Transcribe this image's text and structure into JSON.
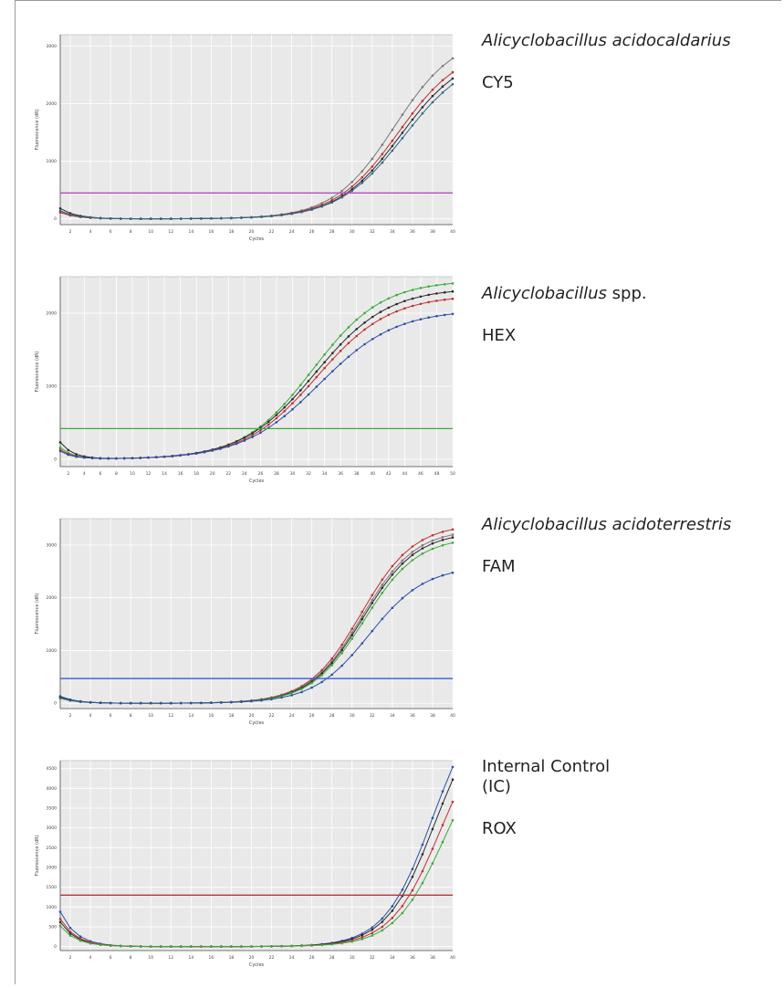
{
  "colors": {
    "plot_bg": "#e9e9e9",
    "grid": "#ffffff",
    "axis": "#555555"
  },
  "panels": [
    {
      "organism_italic": "Alicyclobacillus acidocaldarius",
      "organism_plain": "",
      "dye": "CY5",
      "threshold_color": "#b050c0",
      "chart_data": {
        "type": "line",
        "xlabel": "Cycles",
        "ylabel": "Fluorescence (dR)",
        "xlim": [
          1,
          40
        ],
        "ylim": [
          -100,
          3200
        ],
        "x_ticks": [
          2,
          4,
          6,
          8,
          10,
          12,
          14,
          16,
          18,
          20,
          22,
          24,
          26,
          28,
          30,
          32,
          34,
          36,
          38,
          40
        ],
        "y_ticks": [
          0,
          1000,
          2000,
          3000
        ],
        "threshold": 450,
        "grid": true,
        "series": [
          {
            "color": "#7a7a7a",
            "ct": 30.2,
            "plateau": 3200,
            "k": 0.33,
            "start": 120
          },
          {
            "color": "#c03030",
            "ct": 30.6,
            "plateau": 3000,
            "k": 0.32,
            "start": 110
          },
          {
            "color": "#2a2a2a",
            "ct": 30.8,
            "plateau": 2900,
            "k": 0.32,
            "start": 180
          },
          {
            "color": "#2a6a8a",
            "ct": 31.1,
            "plateau": 2850,
            "k": 0.31,
            "start": 140
          }
        ]
      }
    },
    {
      "organism_italic": "Alicyclobacillus",
      "organism_plain": " spp.",
      "dye": "HEX",
      "threshold_color": "#3cac3c",
      "chart_data": {
        "type": "line",
        "xlabel": "Cycles",
        "ylabel": "Fluorescence (dR)",
        "xlim": [
          1,
          50
        ],
        "ylim": [
          -100,
          2500
        ],
        "x_ticks": [
          2,
          4,
          6,
          8,
          10,
          12,
          14,
          16,
          18,
          20,
          22,
          24,
          26,
          28,
          30,
          32,
          34,
          36,
          38,
          40,
          42,
          44,
          46,
          48,
          50
        ],
        "y_ticks": [
          0,
          1000,
          2000
        ],
        "threshold": 420,
        "grid": true,
        "series": [
          {
            "color": "#3caa3c",
            "ct": 28.5,
            "plateau": 2450,
            "k": 0.23,
            "start": 160
          },
          {
            "color": "#2a2a2a",
            "ct": 28.8,
            "plateau": 2350,
            "k": 0.22,
            "start": 230
          },
          {
            "color": "#c03030",
            "ct": 29.0,
            "plateau": 2250,
            "k": 0.22,
            "start": 130
          },
          {
            "color": "#2a50a8",
            "ct": 29.3,
            "plateau": 2050,
            "k": 0.21,
            "start": 110
          }
        ]
      }
    },
    {
      "organism_italic": "Alicyclobacillus acidoterrestris",
      "organism_plain": "",
      "dye": "FAM",
      "threshold_color": "#3a5ad8",
      "chart_data": {
        "type": "line",
        "xlabel": "Cycles",
        "ylabel": "Fluorescence (dR)",
        "xlim": [
          1,
          40
        ],
        "ylim": [
          -100,
          3500
        ],
        "x_ticks": [
          2,
          4,
          6,
          8,
          10,
          12,
          14,
          16,
          18,
          20,
          22,
          24,
          26,
          28,
          30,
          32,
          34,
          36,
          38,
          40
        ],
        "y_ticks": [
          0,
          1000,
          2000,
          3000
        ],
        "threshold": 470,
        "grid": true,
        "series": [
          {
            "color": "#c03030",
            "ct": 26.9,
            "plateau": 3400,
            "k": 0.38,
            "start": 120
          },
          {
            "color": "#7a7a7a",
            "ct": 27.0,
            "plateau": 3300,
            "k": 0.38,
            "start": 90
          },
          {
            "color": "#2a2a2a",
            "ct": 27.1,
            "plateau": 3250,
            "k": 0.38,
            "start": 130
          },
          {
            "color": "#3caa3c",
            "ct": 27.2,
            "plateau": 3150,
            "k": 0.38,
            "start": 100
          },
          {
            "color": "#2a50a8",
            "ct": 27.7,
            "plateau": 2600,
            "k": 0.36,
            "start": 110
          }
        ]
      }
    },
    {
      "organism_italic": "",
      "organism_plain": "Internal Control (IC)",
      "dye": "ROX",
      "threshold_color": "#b03a3a",
      "chart_data": {
        "type": "line",
        "xlabel": "Cycles",
        "ylabel": "Fluorescence (dR)",
        "xlim": [
          1,
          40
        ],
        "ylim": [
          -100,
          4700
        ],
        "x_ticks": [
          2,
          4,
          6,
          8,
          10,
          12,
          14,
          16,
          18,
          20,
          22,
          24,
          26,
          28,
          30,
          32,
          34,
          36,
          38,
          40
        ],
        "y_ticks": [
          0,
          500,
          1000,
          1500,
          2000,
          2500,
          3000,
          3500,
          4000,
          4500
        ],
        "threshold": 1300,
        "grid": true,
        "series": [
          {
            "color": "#2a50a8",
            "ct": 34.0,
            "plateau": 6500,
            "k": 0.42,
            "start": 880
          },
          {
            "color": "#2a2a2a",
            "ct": 34.2,
            "plateau": 6200,
            "k": 0.42,
            "start": 620
          },
          {
            "color": "#c03030",
            "ct": 34.8,
            "plateau": 5900,
            "k": 0.41,
            "start": 700
          },
          {
            "color": "#3caa3c",
            "ct": 35.1,
            "plateau": 5400,
            "k": 0.41,
            "start": 520
          }
        ]
      }
    }
  ]
}
